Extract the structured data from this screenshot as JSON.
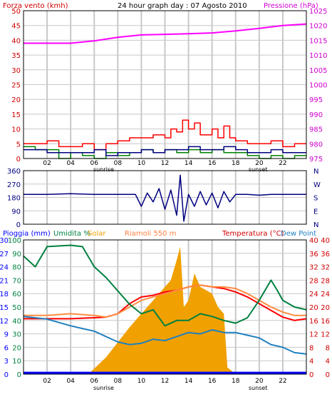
{
  "header": {
    "left_label": "Forza vento (kmh)",
    "title": "24 hour graph day : 07 Agosto 2010",
    "right_label": "Pressione (hPa)"
  },
  "middle_header": {
    "rain_label": "Pioggia (mm)",
    "humidity_label": "Umidita %",
    "solar_label": "Solar",
    "location_label": "Riamoli 550 m",
    "temp_label": "Temperatura (°C)",
    "dewpoint_label": "Dew Point"
  },
  "colors": {
    "wind": "#ff0000",
    "gust": "#008000",
    "wind_avg": "#000080",
    "pressure": "#ff00ff",
    "direction": "#000080",
    "temperature": "#ff0000",
    "dewpoint": "#ff8c40",
    "humidity": "#008040",
    "solar": "#f0a000",
    "rain": "#0000ff",
    "blue_trace": "#2080c0",
    "grid": "#c8c8c8",
    "frame": "#000000"
  },
  "chart_data": [
    {
      "type": "line",
      "name": "wind_pressure",
      "x_ticks": [
        "02",
        "04",
        "06",
        "08",
        "10",
        "12",
        "14",
        "16",
        "18",
        "20",
        "22"
      ],
      "x_markers": [
        "sunrise",
        "sunset"
      ],
      "x_range_hours": [
        0,
        24
      ],
      "y_left": {
        "ticks": [
          "0",
          "5",
          "10",
          "15",
          "20",
          "25",
          "30",
          "35",
          "40",
          "45",
          "50"
        ],
        "ylim": [
          0,
          50
        ]
      },
      "y_right": {
        "ticks": [
          "975",
          "980",
          "985",
          "990",
          "995",
          "1000",
          "1005",
          "1010",
          "1015",
          "1020",
          "1025"
        ],
        "ylim": [
          975,
          1025
        ]
      },
      "series": [
        {
          "key": "pressure",
          "axis": "right",
          "points": [
            [
              0,
              1014.0
            ],
            [
              2,
              1014.0
            ],
            [
              4,
              1014.0
            ],
            [
              6,
              1014.8
            ],
            [
              8,
              1016.0
            ],
            [
              10,
              1016.8
            ],
            [
              12,
              1017.0
            ],
            [
              14,
              1017.2
            ],
            [
              16,
              1017.5
            ],
            [
              18,
              1018.2
            ],
            [
              20,
              1019.0
            ],
            [
              22,
              1020.0
            ],
            [
              24,
              1020.5
            ]
          ]
        },
        {
          "key": "wind",
          "axis": "left",
          "points": [
            [
              0,
              5
            ],
            [
              2,
              6
            ],
            [
              3,
              4
            ],
            [
              5,
              5
            ],
            [
              6,
              3
            ],
            [
              7,
              5
            ],
            [
              8,
              6
            ],
            [
              9,
              7
            ],
            [
              10,
              7
            ],
            [
              11,
              8
            ],
            [
              12,
              7
            ],
            [
              12.5,
              10
            ],
            [
              13,
              9
            ],
            [
              13.5,
              13
            ],
            [
              14,
              10
            ],
            [
              14.5,
              12
            ],
            [
              15,
              8
            ],
            [
              16,
              10
            ],
            [
              16.5,
              7
            ],
            [
              17,
              11
            ],
            [
              17.5,
              7
            ],
            [
              18,
              6
            ],
            [
              19,
              5
            ],
            [
              20,
              5
            ],
            [
              21,
              6
            ],
            [
              22,
              4
            ],
            [
              23,
              5
            ],
            [
              24,
              5
            ]
          ]
        },
        {
          "key": "gust",
          "axis": "left",
          "points": [
            [
              0,
              4
            ],
            [
              1,
              3
            ],
            [
              2,
              3
            ],
            [
              3,
              0
            ],
            [
              4,
              2
            ],
            [
              5,
              1
            ],
            [
              6,
              0
            ],
            [
              7,
              2
            ],
            [
              8,
              1
            ],
            [
              9,
              2
            ],
            [
              10,
              3
            ],
            [
              11,
              2
            ],
            [
              12,
              3
            ],
            [
              13,
              2
            ],
            [
              14,
              3
            ],
            [
              15,
              2
            ],
            [
              16,
              3
            ],
            [
              17,
              2
            ],
            [
              18,
              2
            ],
            [
              19,
              1
            ],
            [
              20,
              0
            ],
            [
              21,
              1
            ],
            [
              22,
              0
            ],
            [
              23,
              1
            ],
            [
              24,
              1
            ]
          ]
        },
        {
          "key": "wind_avg",
          "axis": "left",
          "points": [
            [
              0,
              3
            ],
            [
              1,
              3
            ],
            [
              2,
              2
            ],
            [
              3,
              2
            ],
            [
              4,
              2
            ],
            [
              5,
              2
            ],
            [
              6,
              3
            ],
            [
              7,
              1
            ],
            [
              8,
              2
            ],
            [
              9,
              2
            ],
            [
              10,
              3
            ],
            [
              11,
              2
            ],
            [
              12,
              3
            ],
            [
              13,
              3
            ],
            [
              14,
              4
            ],
            [
              15,
              3
            ],
            [
              16,
              3
            ],
            [
              17,
              4
            ],
            [
              18,
              3
            ],
            [
              19,
              2
            ],
            [
              20,
              2
            ],
            [
              21,
              3
            ],
            [
              22,
              2
            ],
            [
              23,
              2
            ],
            [
              24,
              2
            ]
          ]
        }
      ]
    },
    {
      "type": "line",
      "name": "wind_direction",
      "x_range_hours": [
        0,
        24
      ],
      "y_left": {
        "ticks": [
          "0",
          "90",
          "180",
          "270",
          "360"
        ],
        "ylim": [
          0,
          360
        ]
      },
      "y_right": {
        "ticks": [
          "N",
          "E",
          "S",
          "W",
          "N"
        ]
      },
      "series": [
        {
          "key": "direction",
          "points": [
            [
              0,
              200
            ],
            [
              2,
              200
            ],
            [
              4,
              205
            ],
            [
              6,
              200
            ],
            [
              8,
              200
            ],
            [
              9.5,
              200
            ],
            [
              10,
              120
            ],
            [
              10.5,
              210
            ],
            [
              11,
              150
            ],
            [
              11.5,
              240
            ],
            [
              12,
              100
            ],
            [
              12.5,
              230
            ],
            [
              13,
              60
            ],
            [
              13.3,
              330
            ],
            [
              13.6,
              20
            ],
            [
              14,
              200
            ],
            [
              14.5,
              120
            ],
            [
              15,
              220
            ],
            [
              15.5,
              130
            ],
            [
              16,
              210
            ],
            [
              16.5,
              110
            ],
            [
              17,
              220
            ],
            [
              17.5,
              150
            ],
            [
              18,
              200
            ],
            [
              19,
              200
            ],
            [
              20,
              195
            ],
            [
              21,
              200
            ],
            [
              22,
              200
            ],
            [
              24,
              200
            ]
          ]
        }
      ]
    },
    {
      "type": "line",
      "name": "temperature_humidity",
      "x_ticks": [
        "02",
        "04",
        "06",
        "08",
        "10",
        "12",
        "14",
        "16",
        "18",
        "20",
        "22"
      ],
      "x_markers": [
        "sunrise",
        "sunset"
      ],
      "x_range_hours": [
        0,
        24
      ],
      "y_left_rain": {
        "ticks": [
          "0",
          "3",
          "6",
          "9",
          "12",
          "15",
          "18",
          "21",
          "24",
          "27",
          "30"
        ],
        "ylim": [
          0,
          30
        ]
      },
      "y_left_humidity": {
        "ticks": [
          "0",
          "10",
          "20",
          "30",
          "40",
          "50",
          "60",
          "70",
          "80",
          "90",
          "100"
        ],
        "ylim": [
          0,
          100
        ]
      },
      "y_right_temp1": {
        "ticks": [
          "0",
          "4",
          "8",
          "12",
          "16",
          "20",
          "24",
          "28",
          "32",
          "36",
          "40"
        ],
        "ylim": [
          0,
          40
        ]
      },
      "y_right_temp2": {
        "ticks": [
          "0",
          "4",
          "8",
          "12",
          "16",
          "20",
          "24",
          "28",
          "32",
          "36",
          "40"
        ],
        "ylim": [
          0,
          40
        ]
      },
      "series": [
        {
          "key": "solar",
          "axis": "temp",
          "points": [
            [
              5.5,
              0
            ],
            [
              7,
              5
            ],
            [
              9,
              14
            ],
            [
              10,
              18
            ],
            [
              11,
              22
            ],
            [
              12,
              26
            ],
            [
              12.5,
              28
            ],
            [
              13,
              34
            ],
            [
              13.3,
              38
            ],
            [
              13.6,
              20
            ],
            [
              14,
              22
            ],
            [
              14.5,
              30
            ],
            [
              15,
              26
            ],
            [
              16,
              24
            ],
            [
              16.5,
              20
            ],
            [
              17,
              18
            ],
            [
              17.3,
              2
            ],
            [
              18,
              0
            ]
          ]
        },
        {
          "key": "temperature",
          "axis": "temp",
          "points": [
            [
              0,
              16.5
            ],
            [
              2,
              16.5
            ],
            [
              4,
              16.5
            ],
            [
              6,
              16.8
            ],
            [
              7,
              17.0
            ],
            [
              8,
              18.0
            ],
            [
              9,
              21.0
            ],
            [
              10,
              23.0
            ],
            [
              11,
              23.5
            ],
            [
              12,
              24.5
            ],
            [
              13,
              25.0
            ],
            [
              14,
              26.0
            ],
            [
              15,
              26.5
            ],
            [
              16,
              26.0
            ],
            [
              17,
              25.5
            ],
            [
              18,
              24.5
            ],
            [
              19,
              23.0
            ],
            [
              20,
              21.0
            ],
            [
              21,
              19.0
            ],
            [
              22,
              17.0
            ],
            [
              23,
              16.0
            ],
            [
              24,
              16.5
            ]
          ]
        },
        {
          "key": "dewpoint",
          "axis": "temp",
          "points": [
            [
              0,
              17.5
            ],
            [
              2,
              17.5
            ],
            [
              4,
              18.0
            ],
            [
              6,
              17.5
            ],
            [
              7,
              17.0
            ],
            [
              8,
              18.0
            ],
            [
              9,
              20.0
            ],
            [
              10,
              22.0
            ],
            [
              11,
              23.0
            ],
            [
              12,
              24.0
            ],
            [
              13,
              25.0
            ],
            [
              14,
              26.0
            ],
            [
              15,
              26.5
            ],
            [
              16,
              26.0
            ],
            [
              17,
              26.0
            ],
            [
              18,
              25.5
            ],
            [
              19,
              24.0
            ],
            [
              20,
              22.0
            ],
            [
              21,
              20.0
            ],
            [
              22,
              18.5
            ],
            [
              23,
              17.5
            ],
            [
              24,
              17.5
            ]
          ]
        },
        {
          "key": "humidity",
          "axis": "humidity",
          "points": [
            [
              0,
              88
            ],
            [
              1,
              80
            ],
            [
              2,
              95
            ],
            [
              4,
              96
            ],
            [
              5,
              95
            ],
            [
              6,
              80
            ],
            [
              7,
              72
            ],
            [
              8,
              62
            ],
            [
              9,
              52
            ],
            [
              10,
              45
            ],
            [
              11,
              48
            ],
            [
              12,
              36
            ],
            [
              13,
              40
            ],
            [
              14,
              40
            ],
            [
              15,
              45
            ],
            [
              16,
              43
            ],
            [
              17,
              40
            ],
            [
              18,
              38
            ],
            [
              19,
              42
            ],
            [
              20,
              55
            ],
            [
              21,
              70
            ],
            [
              21.5,
              63
            ],
            [
              22,
              55
            ],
            [
              23,
              50
            ],
            [
              24,
              48
            ]
          ]
        },
        {
          "key": "blue_trace",
          "axis": "humidity",
          "points": [
            [
              0,
              43
            ],
            [
              2,
              41
            ],
            [
              4,
              36
            ],
            [
              5,
              34
            ],
            [
              6,
              32
            ],
            [
              7,
              28
            ],
            [
              8,
              24
            ],
            [
              9,
              22
            ],
            [
              10,
              23
            ],
            [
              11,
              26
            ],
            [
              12,
              25
            ],
            [
              13,
              28
            ],
            [
              14,
              31
            ],
            [
              15,
              30
            ],
            [
              16,
              33
            ],
            [
              17,
              31
            ],
            [
              18,
              31
            ],
            [
              19,
              29
            ],
            [
              20,
              27
            ],
            [
              21,
              22
            ],
            [
              22,
              20
            ],
            [
              23,
              16
            ],
            [
              24,
              15
            ]
          ]
        },
        {
          "key": "rain",
          "axis": "rain",
          "points": [
            [
              0,
              0.3
            ],
            [
              24,
              0.3
            ]
          ]
        }
      ]
    }
  ]
}
